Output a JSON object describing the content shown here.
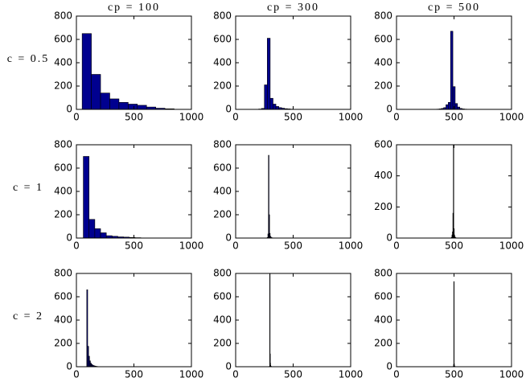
{
  "chart_data": [
    {
      "type": "histogram",
      "title": "cp = 100",
      "ylabel": "c = 0.5",
      "color": "#00008f",
      "bins": [
        50,
        130,
        210,
        290,
        370,
        450,
        530,
        610,
        690,
        770,
        850
      ],
      "values": [
        650,
        300,
        140,
        90,
        60,
        45,
        35,
        20,
        10,
        5
      ],
      "xlim": [
        0,
        1000
      ],
      "xticks": [
        0,
        500,
        1000
      ],
      "ylim": [
        0,
        800
      ],
      "yticks": [
        0,
        200,
        400,
        600,
        800
      ]
    },
    {
      "type": "histogram",
      "title": "cp = 300",
      "color": "#00008f",
      "bins": [
        200,
        225,
        250,
        275,
        300,
        325,
        350,
        375,
        400,
        425,
        450,
        475,
        500,
        525,
        550,
        575
      ],
      "values": [
        3,
        8,
        210,
        610,
        95,
        45,
        25,
        15,
        10,
        6,
        4,
        2,
        1,
        0,
        0
      ],
      "xlim": [
        0,
        1000
      ],
      "xticks": [
        0,
        500,
        1000
      ],
      "ylim": [
        0,
        800
      ],
      "yticks": [
        0,
        200,
        400,
        600,
        800
      ]
    },
    {
      "type": "histogram",
      "title": "cp = 500",
      "color": "#00008f",
      "bins": [
        350,
        370,
        390,
        410,
        430,
        450,
        470,
        490,
        510,
        530,
        550,
        570,
        590,
        610,
        630,
        650
      ],
      "values": [
        2,
        4,
        8,
        15,
        40,
        60,
        670,
        195,
        50,
        20,
        8,
        4,
        2,
        1,
        0
      ],
      "xlim": [
        0,
        1000
      ],
      "xticks": [
        0,
        500,
        1000
      ],
      "ylim": [
        0,
        800
      ],
      "yticks": [
        0,
        200,
        400,
        600,
        800
      ]
    },
    {
      "type": "histogram",
      "ylabel": "c = 1",
      "color": "#00008f",
      "bins": [
        60,
        110,
        160,
        210,
        260,
        310,
        360,
        410,
        460,
        510,
        560
      ],
      "values": [
        700,
        160,
        80,
        45,
        20,
        15,
        10,
        8,
        5,
        3
      ],
      "xlim": [
        0,
        1000
      ],
      "xticks": [
        0,
        500,
        1000
      ],
      "ylim": [
        0,
        800
      ],
      "yticks": [
        0,
        200,
        400,
        600,
        800
      ]
    },
    {
      "type": "histogram",
      "color": "#00008f",
      "bins": [
        270,
        275,
        280,
        285,
        290,
        295,
        300,
        305,
        310,
        315,
        320,
        325,
        330,
        335,
        340
      ],
      "values": [
        2,
        5,
        35,
        710,
        200,
        40,
        15,
        8,
        4,
        2,
        1,
        1,
        0,
        0
      ],
      "xlim": [
        0,
        1000
      ],
      "xticks": [
        0,
        500,
        1000
      ],
      "ylim": [
        0,
        800
      ],
      "yticks": [
        0,
        200,
        400,
        600,
        800
      ]
    },
    {
      "type": "histogram",
      "color": "#00008f",
      "bins": [
        470,
        474,
        478,
        482,
        486,
        490,
        494,
        498,
        502,
        506,
        510,
        514,
        518,
        522,
        526,
        530
      ],
      "values": [
        1,
        2,
        5,
        20,
        40,
        160,
        600,
        60,
        20,
        8,
        4,
        2,
        1,
        0,
        0
      ],
      "xlim": [
        0,
        1000
      ],
      "xticks": [
        0,
        500,
        1000
      ],
      "ylim": [
        0,
        600
      ],
      "yticks": [
        0,
        200,
        400,
        600
      ]
    },
    {
      "type": "histogram",
      "ylabel": "c = 2",
      "color": "#00008f",
      "bins": [
        90,
        98,
        106,
        114,
        122,
        130,
        138,
        146,
        154,
        162,
        170,
        178,
        186,
        194,
        202
      ],
      "values": [
        660,
        175,
        90,
        50,
        30,
        20,
        14,
        10,
        7,
        5,
        3,
        2,
        1,
        1
      ],
      "xlim": [
        0,
        1000
      ],
      "xticks": [
        0,
        500,
        1000
      ],
      "ylim": [
        0,
        800
      ],
      "yticks": [
        0,
        200,
        400,
        600,
        800
      ]
    },
    {
      "type": "histogram",
      "color": "#00008f",
      "bins": [
        290,
        292,
        294,
        296,
        298,
        300,
        302,
        304,
        306,
        308,
        310,
        312,
        314,
        316,
        318,
        320
      ],
      "values": [
        1,
        2,
        4,
        820,
        110,
        30,
        10,
        5,
        3,
        2,
        1,
        1,
        0,
        0,
        0
      ],
      "xlim": [
        0,
        1000
      ],
      "xticks": [
        0,
        500,
        1000
      ],
      "ylim": [
        0,
        800
      ],
      "yticks": [
        0,
        200,
        400,
        600,
        800
      ]
    },
    {
      "type": "histogram",
      "color": "#00008f",
      "bins": [
        490,
        492,
        494,
        496,
        498,
        500,
        502,
        504,
        506,
        508,
        510,
        512,
        514,
        516,
        518,
        520
      ],
      "values": [
        1,
        2,
        5,
        20,
        730,
        25,
        8,
        4,
        2,
        1,
        1,
        0,
        0,
        0,
        0
      ],
      "xlim": [
        0,
        1000
      ],
      "xticks": [
        0,
        500,
        1000
      ],
      "ylim": [
        0,
        800
      ],
      "yticks": [
        0,
        200,
        400,
        600,
        800
      ]
    }
  ]
}
